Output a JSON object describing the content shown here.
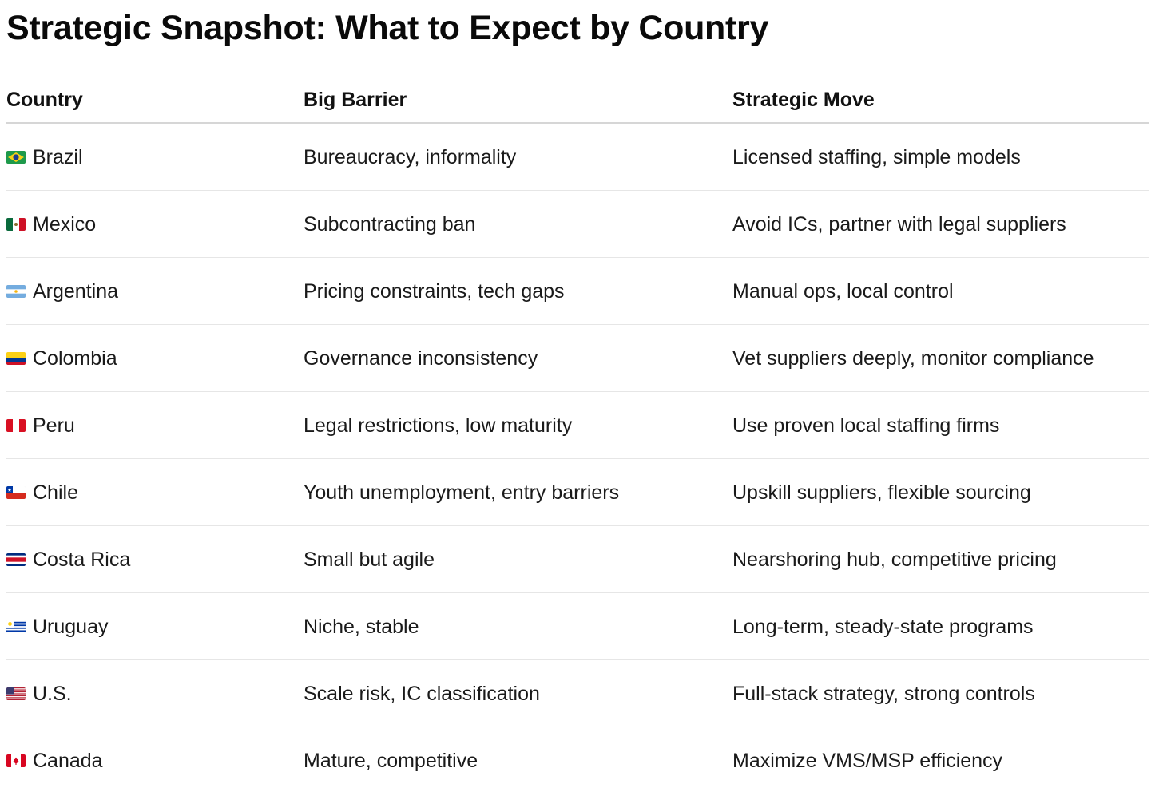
{
  "title": "Strategic Snapshot: What to Expect by Country",
  "table": {
    "headers": [
      "Country",
      "Big Barrier",
      "Strategic Move"
    ],
    "rows": [
      {
        "flag": "brazil-flag-icon",
        "country": "Brazil",
        "barrier": "Bureaucracy, informality",
        "move": "Licensed staffing, simple models"
      },
      {
        "flag": "mexico-flag-icon",
        "country": "Mexico",
        "barrier": "Subcontracting ban",
        "move": "Avoid ICs, partner with legal suppliers"
      },
      {
        "flag": "argentina-flag-icon",
        "country": "Argentina",
        "barrier": "Pricing constraints, tech gaps",
        "move": "Manual ops, local control"
      },
      {
        "flag": "colombia-flag-icon",
        "country": "Colombia",
        "barrier": "Governance inconsistency",
        "move": "Vet suppliers deeply, monitor compliance"
      },
      {
        "flag": "peru-flag-icon",
        "country": "Peru",
        "barrier": "Legal restrictions, low maturity",
        "move": "Use proven local staffing firms"
      },
      {
        "flag": "chile-flag-icon",
        "country": "Chile",
        "barrier": "Youth unemployment, entry barriers",
        "move": "Upskill suppliers, flexible sourcing"
      },
      {
        "flag": "costa-rica-flag-icon",
        "country": "Costa Rica",
        "barrier": "Small but agile",
        "move": "Nearshoring hub, competitive pricing"
      },
      {
        "flag": "uruguay-flag-icon",
        "country": "Uruguay",
        "barrier": "Niche, stable",
        "move": "Long-term, steady-state programs"
      },
      {
        "flag": "us-flag-icon",
        "country": "U.S.",
        "barrier": "Scale risk, IC classification",
        "move": "Full-stack strategy, strong controls"
      },
      {
        "flag": "canada-flag-icon",
        "country": "Canada",
        "barrier": "Mature, competitive",
        "move": "Maximize VMS/MSP efficiency"
      }
    ]
  }
}
